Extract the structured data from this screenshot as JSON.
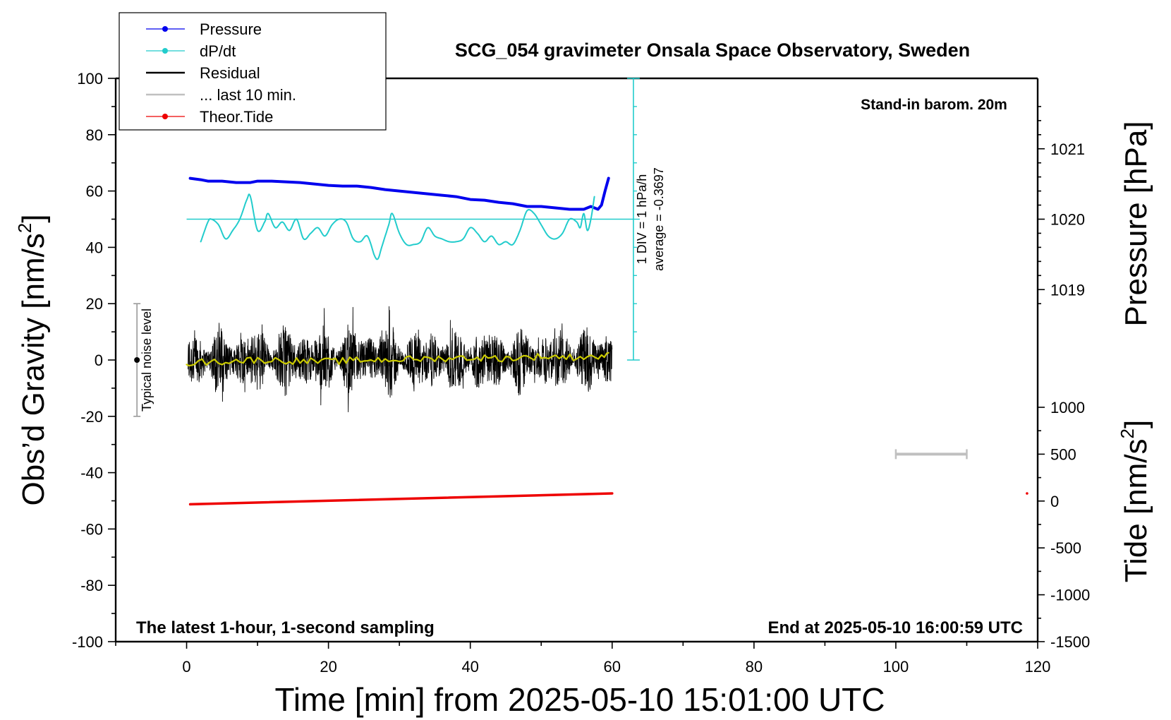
{
  "chart_data": {
    "type": "line",
    "title": "SCG_054 gravimeter Onsala Space Observatory, Sweden",
    "subtitle_left": "The latest 1-hour, 1-second sampling",
    "subtitle_right": "End at 2025-05-10 16:00:59 UTC",
    "station_note": "Stand-in barom. 20m",
    "xlabel": "Time [min] from 2025-05-10 15:01:00 UTC",
    "ylabel_left": "Obs’d Gravity [nm/s",
    "ylabel_pressure": "Pressure [hPa]",
    "ylabel_tide": "Tide [nm/s",
    "ylabel_sup": "2",
    "ylabel_close": "]",
    "xlim": [
      -10,
      120
    ],
    "x_ticks": [
      "0",
      "20",
      "40",
      "60",
      "80",
      "100",
      "120"
    ],
    "ylim_gravity": [
      -100,
      100
    ],
    "y_ticks_gravity": [
      "100",
      "80",
      "60",
      "40",
      "20",
      "0",
      "-20",
      "-40",
      "-60",
      "-80",
      "-100"
    ],
    "pressure_ticks": [
      {
        "label": "1021",
        "value": 1021
      },
      {
        "label": "1020",
        "value": 1020
      },
      {
        "label": "1019",
        "value": 1019
      }
    ],
    "pressure_scale": {
      "hpa_at_gravity_50": 1020,
      "gravity_per_hpa": 25
    },
    "tide_ticks": [
      {
        "label": "1000",
        "value": 1000
      },
      {
        "label": "500",
        "value": 500
      },
      {
        "label": "0",
        "value": 0
      },
      {
        "label": "-500",
        "value": -500
      },
      {
        "label": "-1000",
        "value": -1000
      },
      {
        "label": "-1500",
        "value": -1500
      }
    ],
    "tide_ylim": [
      -1500,
      1000
    ],
    "dpdt_scale_label_1": "1 DIV = 1 hPa/h",
    "dpdt_scale_label_2": "average = -0.3697",
    "dpdt_reference_gravity": 50,
    "noise_label": "Typical noise level",
    "noise_bar": {
      "x": -7,
      "y_low": -20,
      "y_high": 20
    },
    "last10_bar": {
      "x_start": 100,
      "x_end": 110,
      "tide": 500
    },
    "legend": [
      {
        "label": "Pressure",
        "color": "#0000ee",
        "marker": true
      },
      {
        "label": "dP/dt",
        "color": "#22cccc",
        "marker": true
      },
      {
        "label": "Residual",
        "color": "#000000",
        "marker": false
      },
      {
        "label": "... last 10 min.",
        "color": "#c0c0c0",
        "marker": false
      },
      {
        "label": "Theor.Tide",
        "color": "#ee0000",
        "marker": true
      }
    ],
    "series": [
      {
        "name": "Pressure",
        "color": "#0000ee",
        "unit": "hPa",
        "x": [
          0.5,
          2,
          3,
          5,
          7,
          9,
          10,
          12,
          14,
          16,
          18,
          20,
          22,
          24,
          26,
          28,
          30,
          32,
          34,
          36,
          38,
          40,
          42,
          44,
          46,
          48,
          50,
          52,
          54,
          56,
          57,
          58,
          58.5,
          59,
          59.5
        ],
        "values": [
          1020.58,
          1020.56,
          1020.54,
          1020.54,
          1020.52,
          1020.52,
          1020.54,
          1020.54,
          1020.53,
          1020.52,
          1020.5,
          1020.48,
          1020.47,
          1020.47,
          1020.45,
          1020.42,
          1020.4,
          1020.38,
          1020.36,
          1020.34,
          1020.32,
          1020.28,
          1020.27,
          1020.24,
          1020.22,
          1020.18,
          1020.18,
          1020.16,
          1020.14,
          1020.14,
          1020.18,
          1020.14,
          1020.2,
          1020.4,
          1020.58
        ]
      },
      {
        "name": "dP/dt",
        "color": "#22cccc",
        "unit": "gravity-axis units (1 DIV = 1 hPa/h)",
        "x": [
          2,
          3,
          3.5,
          4.5,
          5.5,
          6.5,
          7.5,
          8.5,
          9,
          10,
          11,
          11.5,
          12.5,
          13.5,
          14.5,
          15.5,
          16.5,
          17.5,
          18.5,
          19.5,
          20.5,
          21.5,
          22.5,
          23.5,
          24.5,
          25.5,
          26.5,
          27,
          27.5,
          28.5,
          29,
          30,
          31,
          32,
          33,
          34,
          35,
          36,
          37,
          38,
          39,
          40,
          41,
          42,
          43,
          44,
          45,
          46,
          47,
          48,
          49,
          50,
          51,
          52,
          53,
          54,
          55,
          55.5,
          56,
          56.5,
          57,
          57.5
        ],
        "values": [
          42,
          49,
          50,
          48,
          43,
          46,
          50,
          57,
          58,
          46,
          49,
          52,
          47,
          49,
          46,
          50,
          43,
          45,
          47,
          44,
          48,
          50,
          49,
          43,
          42,
          44,
          37,
          36,
          40,
          48,
          52,
          45,
          41,
          41,
          42,
          47,
          44,
          43,
          42,
          42,
          43,
          47,
          45,
          42,
          44,
          41,
          42,
          41,
          46,
          53,
          52,
          48,
          44,
          43,
          45,
          50,
          49,
          47,
          52,
          46,
          50,
          58
        ]
      },
      {
        "name": "Residual",
        "color": "#000000",
        "unit": "nm/s2",
        "x_range": [
          0.2,
          60
        ],
        "envelope_min": -22,
        "envelope_max": 19,
        "typical_spread": 12
      },
      {
        "name": "Smoothed residual",
        "color": "#cccc00",
        "unit": "nm/s2",
        "x": [
          0,
          5,
          10,
          15,
          20,
          25,
          30,
          35,
          40,
          45,
          50,
          55,
          59.5
        ],
        "values": [
          -1,
          -0.5,
          0,
          -0.3,
          -0.5,
          0,
          0.2,
          0.5,
          0.8,
          0.6,
          1.2,
          1.0,
          1.5
        ]
      },
      {
        "name": "Theor.Tide",
        "color": "#ee0000",
        "unit": "nm/s2",
        "x": [
          0.5,
          60
        ],
        "values": [
          -35,
          81
        ],
        "extra_point": {
          "x": 118.5,
          "value": 81
        }
      }
    ]
  }
}
